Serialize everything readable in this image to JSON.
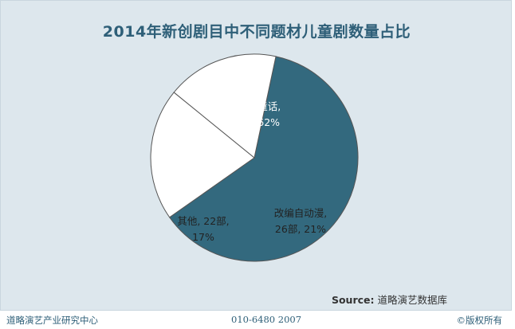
{
  "header": {
    "title": "2014年新创剧目中不同题材儿童剧数量占比"
  },
  "chart_data": {
    "type": "pie",
    "title": "2014年新创剧目中不同题材儿童剧数量占比",
    "slices": [
      {
        "line1": "改编自童话,",
        "line2": "78部, 62%",
        "count": 78,
        "percent": 62,
        "color": "#33697e",
        "text_color": "#ffffff"
      },
      {
        "line1": "改编自动漫,",
        "line2": "26部, 21%",
        "count": 26,
        "percent": 21,
        "color": "#ffffff",
        "text_color": "#222222"
      },
      {
        "line1": "其他, 22部,",
        "line2": "17%",
        "count": 22,
        "percent": 17,
        "color": "#ffffff",
        "text_color": "#222222"
      }
    ]
  },
  "source": {
    "label": "Source:",
    "text": "道略演艺数据库"
  },
  "footer": {
    "left": "道略演艺产业研究中心",
    "center": "010-6480 2007",
    "right": "©版权所有"
  }
}
